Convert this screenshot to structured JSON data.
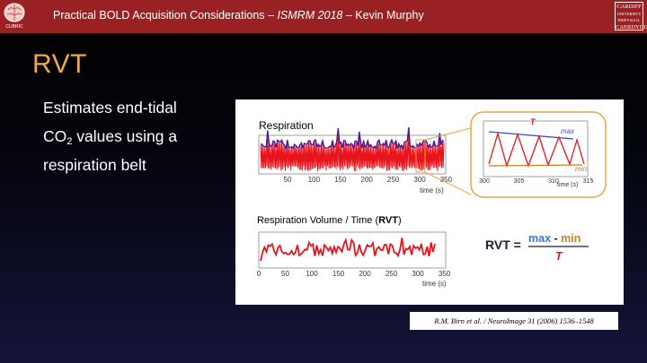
{
  "header": {
    "title_prefix": "Practical BOLD Acquisition Considerations – ",
    "conference": "ISMRM 2018",
    "title_suffix": " – Kevin Murphy",
    "logo_left_label": "CUBRIC",
    "logo_right_lines": [
      "CARDIFF",
      "UNIVERSITY",
      "PRIFYSGOL",
      "CAERDYDD"
    ]
  },
  "slide": {
    "title": "RVT",
    "bullet_part1": "Estimates end-tidal",
    "bullet_co": "CO",
    "bullet_sub": "2",
    "bullet_part2": " values using a respiration belt"
  },
  "figure": {
    "respiration": {
      "title": "Respiration",
      "xlabel": "time (s)",
      "ticks": [
        "50",
        "100",
        "150",
        "200",
        "250",
        "300",
        "350"
      ]
    },
    "zoom": {
      "ticks": [
        "300",
        "305",
        "310",
        "315"
      ],
      "xlabel": "time (s)",
      "label_T": "T",
      "label_max": "max",
      "label_min": "min"
    },
    "rvt": {
      "title_prefix": "Respiration Volume / Time (",
      "title_bold": "RVT",
      "title_suffix": ")",
      "xlabel": "time (s)",
      "ticks": [
        "0",
        "50",
        "100",
        "150",
        "200",
        "250",
        "300",
        "350"
      ]
    },
    "formula": {
      "lhs": "RVT =",
      "max": "max",
      "minus": " - ",
      "min": "min",
      "denominator": "T"
    }
  },
  "citation": "R.M. Birn et al. / NeuroImage 31 (2006) 1536–1548",
  "colors": {
    "header": "#9a2123",
    "title": "#f0a94a",
    "signal_red": "#e8141c",
    "envelope_purple": "#4b1a9c",
    "zoom_border": "#e3a848",
    "formula_blue": "#3a78d8",
    "formula_orange": "#c8821a"
  }
}
